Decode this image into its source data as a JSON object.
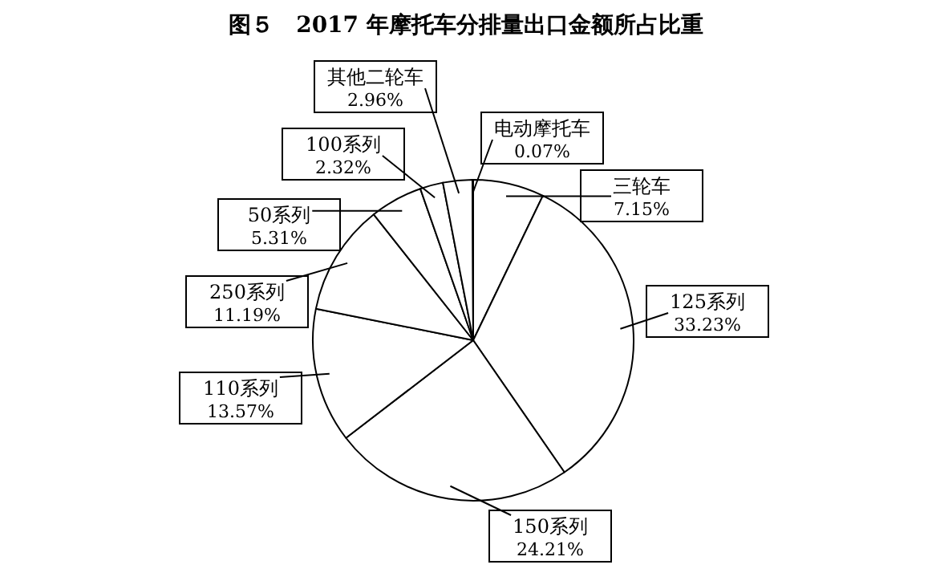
{
  "chart_data": {
    "type": "pie",
    "title": "图５　2017 年摩托车分排量出口金额所占比重",
    "categories": [
      "三轮车",
      "125系列",
      "150系列",
      "110系列",
      "250系列",
      "50系列",
      "100系列",
      "其他二轮车",
      "电动摩托车"
    ],
    "values": [
      7.15,
      33.23,
      24.21,
      13.57,
      11.19,
      5.31,
      2.32,
      2.96,
      0.07
    ],
    "value_labels": [
      "7.15%",
      "33.23%",
      "24.21%",
      "13.57%",
      "11.19%",
      "5.31%",
      "2.32%",
      "2.96%",
      "0.07%"
    ],
    "colors": [
      "#ffffff",
      "#ffffff",
      "#ffffff",
      "#ffffff",
      "#ffffff",
      "#ffffff",
      "#ffffff",
      "#ffffff",
      "#ffffff"
    ]
  }
}
